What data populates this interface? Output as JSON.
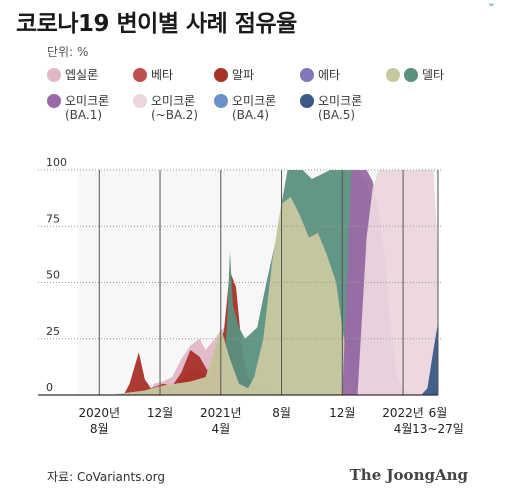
{
  "title": "코로나19 변이별 사례 점유율",
  "unit": "단위: %",
  "source": "자료: CoVariants.org",
  "brand": "The JoongAng",
  "legend": [
    {
      "label": "엡실론",
      "sub": "",
      "color": "#e0b8c8"
    },
    {
      "label": "베타",
      "sub": "",
      "color": "#c0504d"
    },
    {
      "label": "알파",
      "sub": "",
      "color": "#a83228"
    },
    {
      "label": "에타",
      "sub": "",
      "color": "#8078b8"
    },
    {
      "label": "델타",
      "sub": "",
      "color": "#c8c8a0",
      "color2": "#5a9080"
    },
    {
      "label": "오미크론",
      "sub": "(BA.1)",
      "color": "#9a6aa8"
    },
    {
      "label": "오미크론",
      "sub": "(~BA.2)",
      "color": "#ecd6de"
    },
    {
      "label": "오미크론",
      "sub": "(BA.4)",
      "color": "#6a90c8"
    },
    {
      "label": "오미크론",
      "sub": "(BA.5)",
      "color": "#3a5a88"
    }
  ],
  "chart_data": {
    "type": "area",
    "title": "코로나19 변이별 사례 점유율",
    "ylabel": "단위: %",
    "ylim": [
      0,
      100
    ],
    "yticks": [
      0,
      25,
      50,
      75,
      100
    ],
    "x_tick_labels": [
      {
        "month": 0,
        "line1": "2020년",
        "line2": "8월"
      },
      {
        "month": 4,
        "line1": "12월",
        "line2": ""
      },
      {
        "month": 8,
        "line1": "2021년",
        "line2": "4월"
      },
      {
        "month": 12,
        "line1": "8월",
        "line2": ""
      },
      {
        "month": 16,
        "line1": "12월",
        "line2": ""
      },
      {
        "month": 20,
        "line1": "2022년",
        "line2": "4월"
      },
      {
        "month": 22.3,
        "line1": "6월",
        "line2": "13~27일"
      }
    ],
    "series": [
      {
        "name": "엡실론",
        "color": "#e0b8c8",
        "points": [
          [
            3.2,
            0
          ],
          [
            3.6,
            5
          ],
          [
            4.2,
            6
          ],
          [
            4.8,
            8
          ],
          [
            5.4,
            16
          ],
          [
            6.0,
            22
          ],
          [
            6.6,
            25
          ],
          [
            7.0,
            20
          ],
          [
            7.6,
            25
          ],
          [
            8.2,
            30
          ],
          [
            8.8,
            18
          ],
          [
            9.4,
            6
          ],
          [
            10.0,
            0
          ]
        ]
      },
      {
        "name": "베타",
        "color": "#c0504d",
        "points": [
          [
            4.0,
            0
          ],
          [
            4.5,
            2
          ],
          [
            5.0,
            4
          ],
          [
            5.6,
            8
          ],
          [
            6.2,
            12
          ],
          [
            6.8,
            10
          ],
          [
            7.4,
            8
          ],
          [
            8.0,
            12
          ],
          [
            8.6,
            9
          ],
          [
            9.2,
            4
          ],
          [
            9.8,
            0
          ]
        ]
      },
      {
        "name": "알파",
        "color": "#a83228",
        "points": [
          [
            1.6,
            0
          ],
          [
            2.0,
            5
          ],
          [
            2.6,
            19
          ],
          [
            3.0,
            7
          ],
          [
            3.4,
            3
          ],
          [
            4.2,
            5
          ],
          [
            4.8,
            4
          ],
          [
            5.4,
            10
          ],
          [
            6.0,
            20
          ],
          [
            6.6,
            17
          ],
          [
            7.2,
            10
          ],
          [
            7.7,
            22
          ],
          [
            8.2,
            28
          ],
          [
            8.6,
            55
          ],
          [
            9.0,
            48
          ],
          [
            9.4,
            20
          ],
          [
            9.8,
            8
          ],
          [
            10.2,
            5
          ],
          [
            10.8,
            3
          ],
          [
            11.4,
            1
          ],
          [
            12.0,
            0
          ]
        ]
      },
      {
        "name": "에타",
        "color": "#8078b8",
        "points": [
          [
            8.4,
            0
          ],
          [
            8.8,
            2
          ],
          [
            9.2,
            3
          ],
          [
            9.6,
            6
          ],
          [
            10.0,
            4
          ],
          [
            10.6,
            2
          ],
          [
            11.2,
            0
          ]
        ]
      },
      {
        "name": "델타 (녹색)",
        "color": "#5a9080",
        "points": [
          [
            8.0,
            0
          ],
          [
            8.4,
            30
          ],
          [
            8.6,
            64
          ],
          [
            8.8,
            40
          ],
          [
            9.2,
            30
          ],
          [
            9.6,
            25
          ],
          [
            10.4,
            30
          ],
          [
            11.0,
            50
          ],
          [
            11.6,
            68
          ],
          [
            12.0,
            85
          ],
          [
            12.4,
            100
          ],
          [
            13.4,
            100
          ],
          [
            14.0,
            96
          ],
          [
            14.6,
            98
          ],
          [
            15.2,
            100
          ],
          [
            16.0,
            100
          ],
          [
            17.0,
            100
          ],
          [
            17.6,
            95
          ],
          [
            18.0,
            85
          ],
          [
            18.4,
            80
          ],
          [
            18.8,
            60
          ],
          [
            19.2,
            28
          ],
          [
            19.6,
            8
          ],
          [
            20.0,
            2
          ],
          [
            20.4,
            0
          ]
        ]
      },
      {
        "name": "델타 (베이지)",
        "color": "#c8c8a0",
        "points": [
          [
            0.6,
            0
          ],
          [
            3.0,
            2
          ],
          [
            4.0,
            4
          ],
          [
            5.0,
            5
          ],
          [
            6.0,
            6
          ],
          [
            7.0,
            8
          ],
          [
            8.0,
            30
          ],
          [
            8.6,
            16
          ],
          [
            9.2,
            5
          ],
          [
            9.8,
            3
          ],
          [
            10.2,
            8
          ],
          [
            10.8,
            25
          ],
          [
            11.4,
            60
          ],
          [
            12.0,
            85
          ],
          [
            12.6,
            88
          ],
          [
            13.2,
            80
          ],
          [
            13.8,
            70
          ],
          [
            14.4,
            72
          ],
          [
            15.0,
            62
          ],
          [
            15.6,
            50
          ],
          [
            16.0,
            30
          ],
          [
            16.4,
            12
          ],
          [
            16.8,
            3
          ],
          [
            17.2,
            0
          ]
        ]
      },
      {
        "name": "오미크론 (BA.1)",
        "color": "#9a6aa8",
        "points": [
          [
            16.0,
            0
          ],
          [
            16.6,
            100
          ],
          [
            17.6,
            100
          ],
          [
            18.0,
            95
          ],
          [
            18.4,
            80
          ],
          [
            18.8,
            60
          ],
          [
            19.2,
            28
          ],
          [
            19.6,
            8
          ],
          [
            20.0,
            2
          ],
          [
            20.6,
            0
          ]
        ]
      },
      {
        "name": "오미크론 (~BA.2)",
        "color": "#ecd6de",
        "points": [
          [
            17.0,
            0
          ],
          [
            17.6,
            70
          ],
          [
            18.0,
            92
          ],
          [
            18.4,
            100
          ],
          [
            22.0,
            100
          ],
          [
            22.3,
            62
          ]
        ]
      },
      {
        "name": "오미크론 (BA.4)",
        "color": "#6a90c8",
        "points": [
          [
            21.6,
            0
          ],
          [
            22.0,
            2
          ],
          [
            22.3,
            6
          ]
        ]
      },
      {
        "name": "오미크론 (BA.5)",
        "color": "#3a5a88",
        "points": [
          [
            21.2,
            0
          ],
          [
            21.6,
            3
          ],
          [
            22.0,
            20
          ],
          [
            22.3,
            32
          ]
        ]
      }
    ]
  }
}
